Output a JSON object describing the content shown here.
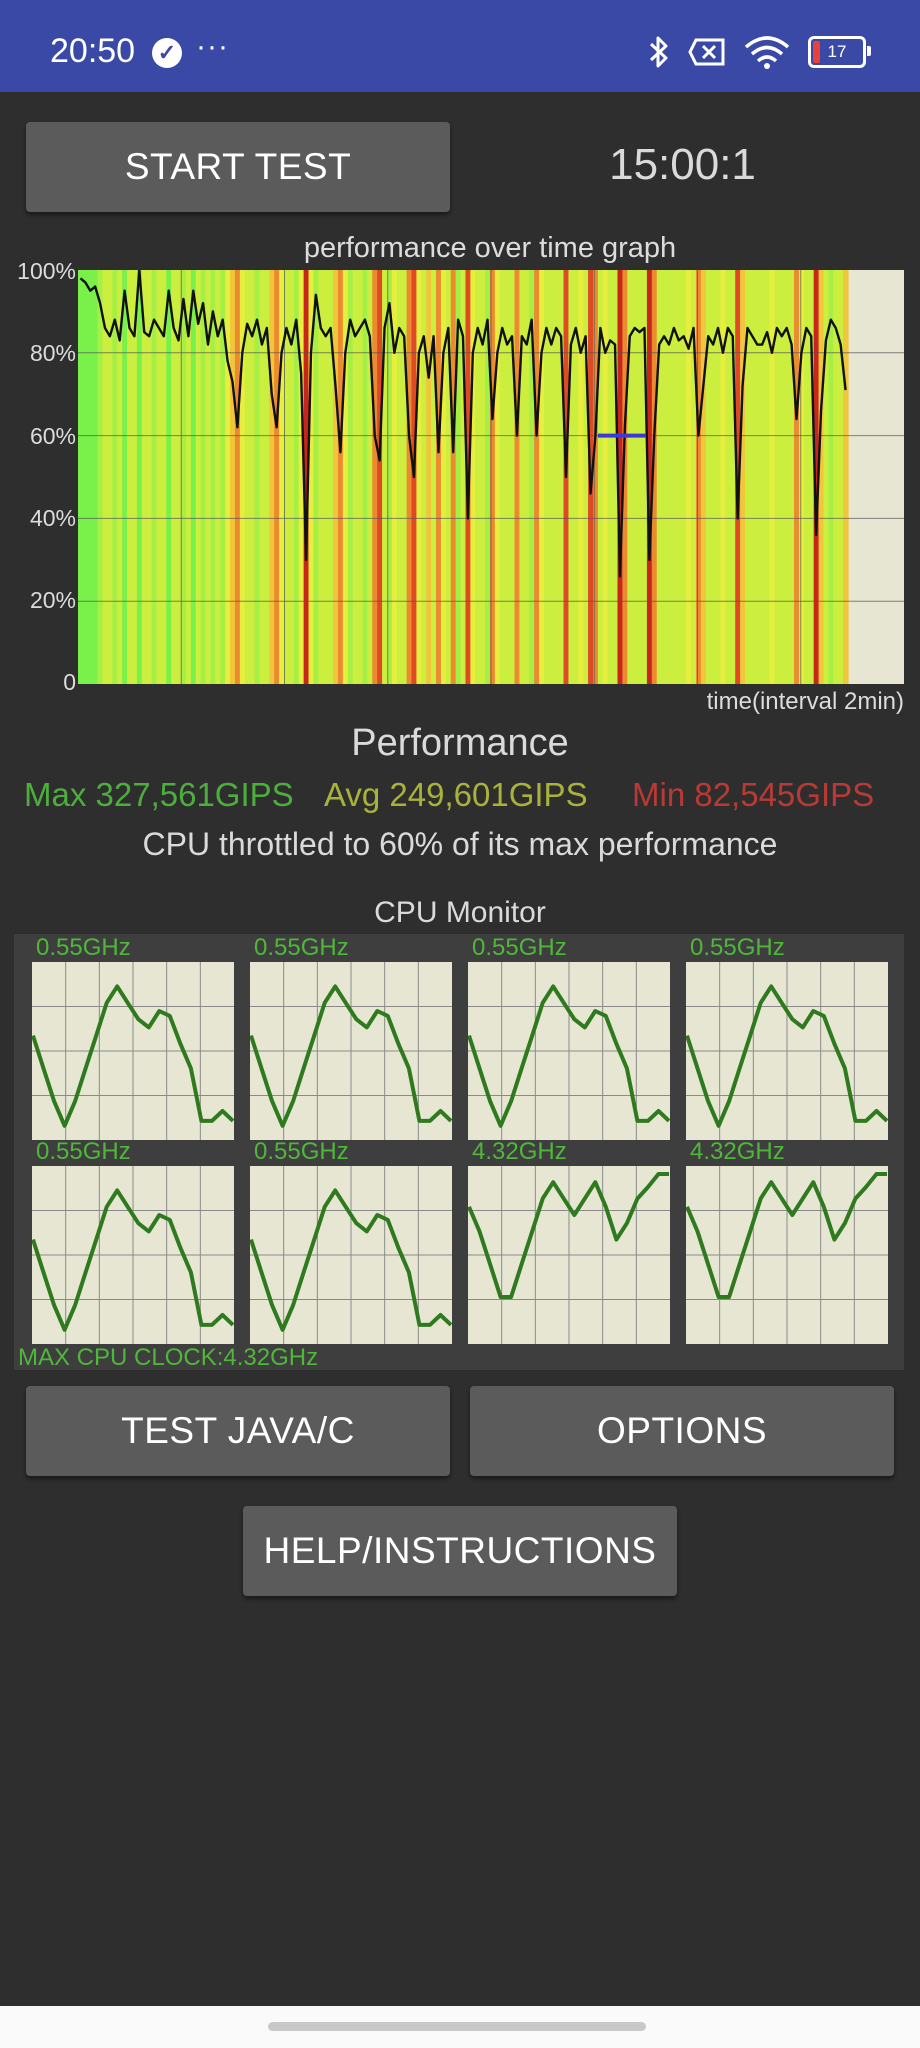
{
  "status_bar": {
    "time": "20:50",
    "battery": "17",
    "icons": [
      "check-circle-icon",
      "more-icon",
      "bluetooth-icon",
      "no-sim-icon",
      "wifi-icon",
      "battery-icon"
    ]
  },
  "controls": {
    "start_label": "START TEST",
    "timer": "15:00:1"
  },
  "graph": {
    "title": "performance over time graph",
    "y_ticks": [
      "100%",
      "80%",
      "60%",
      "40%",
      "20%",
      "0"
    ],
    "xlabel": "time(interval 2min)",
    "chart_data": {
      "type": "area",
      "ylim": [
        0,
        100
      ],
      "y_unit": "%",
      "series": [
        {
          "values": [
            98,
            97,
            95,
            96,
            92,
            86,
            84,
            88,
            83,
            95,
            86,
            84,
            100,
            85,
            84,
            88,
            86,
            84,
            95,
            86,
            83,
            93,
            84,
            95,
            87,
            92,
            82,
            90,
            84,
            88,
            78,
            73,
            62,
            80,
            87,
            84,
            88,
            82,
            86,
            70,
            62,
            80,
            86,
            82,
            88,
            75,
            30,
            80,
            94,
            86,
            84,
            86,
            72,
            56,
            80,
            88,
            84,
            86,
            88,
            84,
            60,
            54,
            86,
            92,
            80,
            86,
            84,
            60,
            50,
            80,
            84,
            74,
            84,
            56,
            80,
            86,
            56,
            88,
            84,
            40,
            80,
            86,
            82,
            88,
            64,
            80,
            86,
            82,
            84,
            60,
            84,
            82,
            88,
            60,
            80,
            86,
            82,
            86,
            84,
            50,
            82,
            86,
            80,
            84,
            46,
            60,
            86,
            80,
            83,
            82,
            26,
            62,
            84,
            86,
            85,
            86,
            30,
            60,
            82,
            84,
            82,
            86,
            83,
            84,
            81,
            86,
            60,
            72,
            84,
            82,
            86,
            80,
            86,
            84,
            40,
            72,
            86,
            84,
            82,
            82,
            85,
            80,
            86,
            84,
            86,
            82,
            64,
            80,
            86,
            84,
            36,
            66,
            83,
            88,
            86,
            82,
            71
          ]
        }
      ],
      "shown_bands": [
        {
          "label": "throttled",
          "value": 60,
          "color": "#3a3adc"
        }
      ]
    }
  },
  "performance": {
    "title": "Performance",
    "max": "Max 327,561GIPS",
    "avg": "Avg 249,601GIPS",
    "min": "Min 82,545GIPS",
    "max_color": "#4caf3c",
    "avg_color": "#a9b23a",
    "min_color": "#b93a34",
    "throttle_text": "CPU throttled to 60% of its max performance"
  },
  "cpu_monitor": {
    "title": "CPU Monitor",
    "cores": [
      {
        "freq": "0.55GHz",
        "trace": [
          60,
          40,
          20,
          5,
          20,
          40,
          60,
          80,
          90,
          80,
          70,
          65,
          75,
          72,
          55,
          40,
          8,
          8,
          14,
          8
        ]
      },
      {
        "freq": "0.55GHz",
        "trace": [
          60,
          40,
          20,
          5,
          20,
          40,
          60,
          80,
          90,
          80,
          70,
          65,
          75,
          72,
          55,
          40,
          8,
          8,
          14,
          8
        ]
      },
      {
        "freq": "0.55GHz",
        "trace": [
          60,
          40,
          20,
          5,
          20,
          40,
          60,
          80,
          90,
          80,
          70,
          65,
          75,
          72,
          55,
          40,
          8,
          8,
          14,
          8
        ]
      },
      {
        "freq": "0.55GHz",
        "trace": [
          60,
          40,
          20,
          5,
          20,
          40,
          60,
          80,
          90,
          80,
          70,
          65,
          75,
          72,
          55,
          40,
          8,
          8,
          14,
          8
        ]
      },
      {
        "freq": "0.55GHz",
        "trace": [
          60,
          40,
          20,
          5,
          20,
          40,
          60,
          80,
          90,
          80,
          70,
          65,
          75,
          72,
          55,
          40,
          8,
          8,
          14,
          8
        ]
      },
      {
        "freq": "0.55GHz",
        "trace": [
          60,
          40,
          20,
          5,
          20,
          40,
          60,
          80,
          90,
          80,
          70,
          65,
          75,
          72,
          55,
          40,
          8,
          8,
          14,
          8
        ]
      },
      {
        "freq": "4.32GHz",
        "trace": [
          80,
          65,
          45,
          25,
          25,
          45,
          65,
          85,
          95,
          85,
          75,
          85,
          95,
          80,
          60,
          70,
          85,
          92,
          100,
          100
        ]
      },
      {
        "freq": "4.32GHz",
        "trace": [
          80,
          65,
          45,
          25,
          25,
          45,
          65,
          85,
          95,
          85,
          75,
          85,
          95,
          80,
          60,
          70,
          85,
          92,
          100,
          100
        ]
      }
    ],
    "max_clock": "MAX CPU CLOCK:4.32GHz",
    "line_color": "#2f7a1f"
  },
  "buttons": {
    "test_java_c": "TEST JAVA/C",
    "options": "OPTIONS",
    "help": "HELP/INSTRUCTIONS"
  }
}
